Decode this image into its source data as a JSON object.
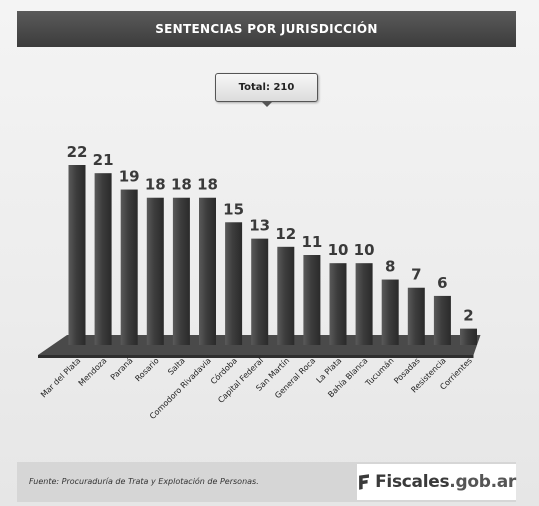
{
  "header": {
    "title": "SENTENCIAS POR JURISDICCIÓN"
  },
  "total": {
    "label": "Total: 210"
  },
  "footer": {
    "source": "Fuente: Procuraduría de Trata y Explotación de Personas.",
    "logo_main": "Fiscales",
    "logo_suffix": ".gob.ar"
  },
  "colors": {
    "bar": "#3d3d3d",
    "bar_highlight": "#5a5a5a",
    "base": "#4a4a4a",
    "title_bg": "#444444"
  },
  "chart_data": {
    "type": "bar",
    "title": "SENTENCIAS POR JURISDICCIÓN",
    "categories": [
      "Mar del Plata",
      "Mendoza",
      "Paraná",
      "Rosario",
      "Salta",
      "Comodoro Rivadavia",
      "Córdoba",
      "Capital Federal",
      "San Martín",
      "General Roca",
      "La Plata",
      "Bahía Blanca",
      "Tucumán",
      "Posadas",
      "Resistencia",
      "Corrientes"
    ],
    "values": [
      22,
      21,
      19,
      18,
      18,
      18,
      15,
      13,
      12,
      11,
      10,
      10,
      8,
      7,
      6,
      2
    ],
    "ylim": [
      0,
      22
    ],
    "grid": false,
    "legend": "none"
  }
}
